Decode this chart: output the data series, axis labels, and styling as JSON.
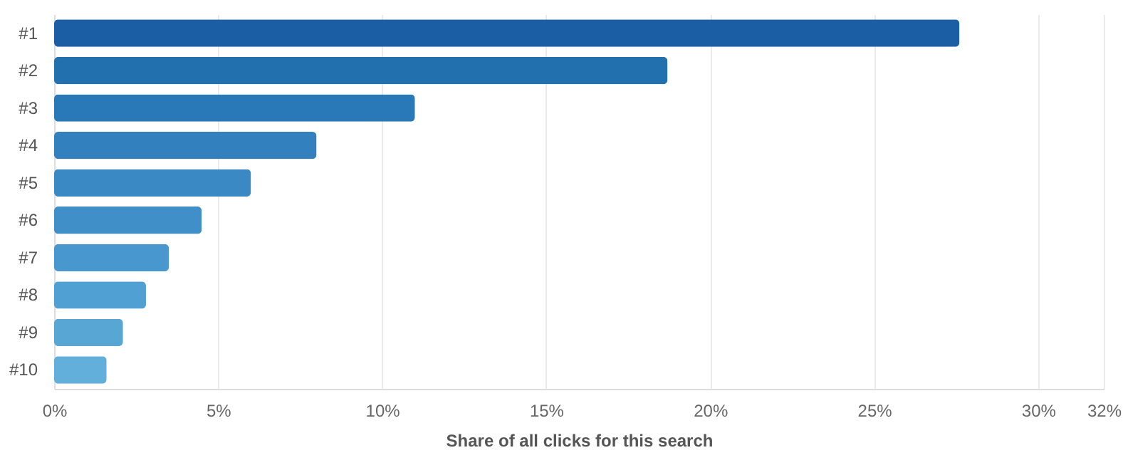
{
  "chart_data": {
    "type": "bar",
    "orientation": "horizontal",
    "xlabel": "Share of all clicks for this search",
    "categories": [
      "#1",
      "#2",
      "#3",
      "#4",
      "#5",
      "#6",
      "#7",
      "#8",
      "#9",
      "#10"
    ],
    "values": [
      27.6,
      18.7,
      11.0,
      8.0,
      6.0,
      4.5,
      3.5,
      2.8,
      2.1,
      1.6
    ],
    "colors": [
      "#1b5ea4",
      "#2270ae",
      "#2978b7",
      "#3281be",
      "#3a89c4",
      "#418fc8",
      "#4898cf",
      "#50a0d3",
      "#57a6d4",
      "#62afdb"
    ],
    "xlim": [
      0,
      32
    ],
    "xticks": [
      {
        "value": 0,
        "label": "0%"
      },
      {
        "value": 5,
        "label": "5%"
      },
      {
        "value": 10,
        "label": "10%"
      },
      {
        "value": 15,
        "label": "15%"
      },
      {
        "value": 20,
        "label": "20%"
      },
      {
        "value": 25,
        "label": "25%"
      },
      {
        "value": 30,
        "label": "30%"
      },
      {
        "value": 32,
        "label": "32%"
      }
    ],
    "grid": "x"
  }
}
